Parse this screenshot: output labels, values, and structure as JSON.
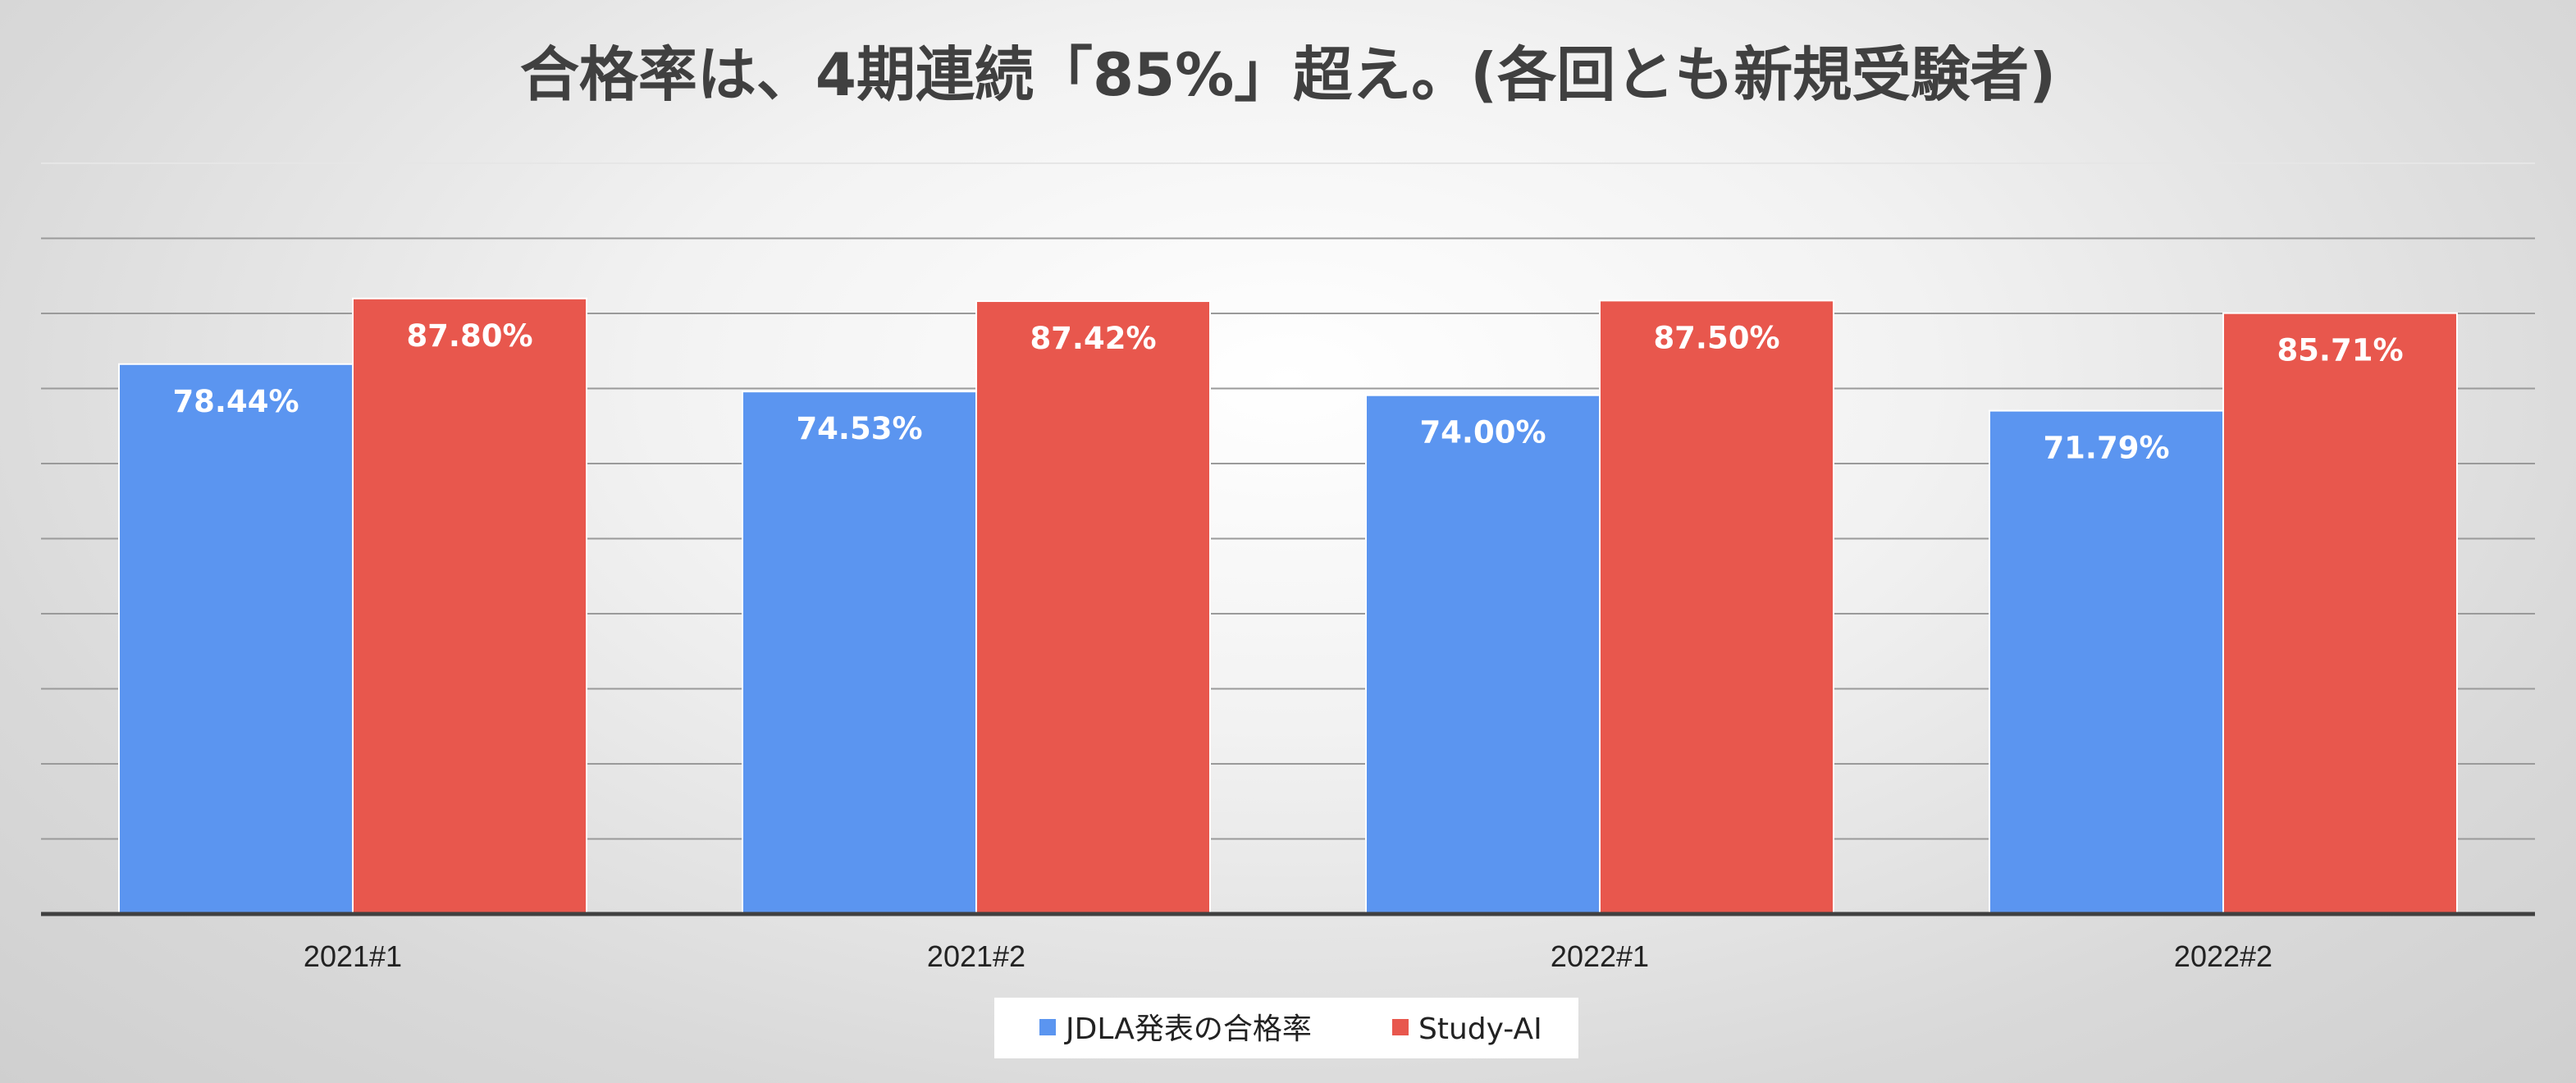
{
  "chart_data": {
    "type": "bar",
    "title": "合格率は、4期連続「85%」超え。(各回とも新規受験者)",
    "xlabel": "",
    "ylabel": "",
    "categories": [
      "2021#1",
      "2021#2",
      "2022#1",
      "2022#2"
    ],
    "series": [
      {
        "name": "JDLA発表の合格率",
        "color": "#5b95f0",
        "values": [
          78.44,
          74.53,
          74.0,
          71.79
        ],
        "labels": [
          "78.44%",
          "74.53%",
          "74.00%",
          "71.79%"
        ]
      },
      {
        "name": "Study-AI",
        "color": "#e8574d",
        "values": [
          87.8,
          87.42,
          87.5,
          85.71
        ],
        "labels": [
          "87.80%",
          "87.42%",
          "87.50%",
          "85.71%"
        ]
      }
    ],
    "ylim": [
      0,
      90
    ],
    "y_axis_labels_shown": false,
    "grid": true,
    "legend_position": "bottom"
  }
}
